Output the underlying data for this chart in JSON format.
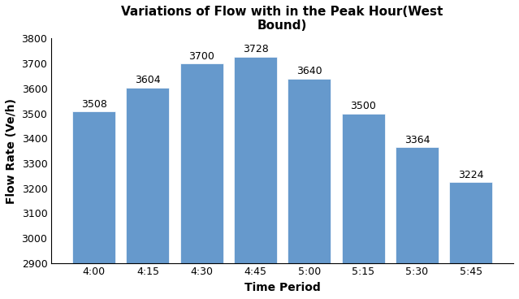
{
  "title": "Variations of Flow with in the Peak Hour(West\nBound)",
  "xlabel": "Time Period",
  "ylabel": "Flow Rate (Ve/h)",
  "categories": [
    "4:00",
    "4:15",
    "4:30",
    "4:45",
    "5:00",
    "5:15",
    "5:30",
    "5:45"
  ],
  "values": [
    3508,
    3604,
    3700,
    3728,
    3640,
    3500,
    3364,
    3224
  ],
  "bar_color": "#6699cc",
  "ylim": [
    2900,
    3800
  ],
  "yticks": [
    2900,
    3000,
    3100,
    3200,
    3300,
    3400,
    3500,
    3600,
    3700,
    3800
  ],
  "title_fontsize": 11,
  "label_fontsize": 10,
  "tick_fontsize": 9,
  "annotation_fontsize": 9
}
